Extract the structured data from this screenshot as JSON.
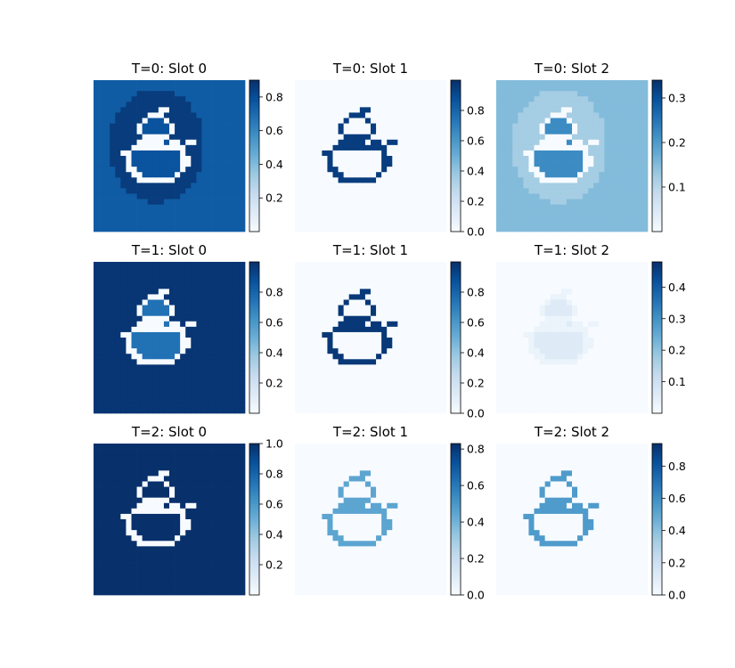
{
  "figure": {
    "colormap": "Blues",
    "colormap_stops": [
      "#f7fbff",
      "#deebf7",
      "#c6dbef",
      "#9ecae1",
      "#6baed6",
      "#4292c6",
      "#2171b5",
      "#08519c",
      "#08306b"
    ]
  },
  "chart_data": [
    {
      "type": "heatmap",
      "title": "T=0: Slot 0",
      "row": 0,
      "col": 0,
      "vmin": 0.0,
      "vmax": 0.9,
      "colorbar_ticks": [
        0.2,
        0.4,
        0.6,
        0.8
      ],
      "colorbar_tick_labels": [
        "0.2",
        "0.4",
        "0.6",
        "0.8"
      ],
      "fill_values": {
        "background": 0.75,
        "halo": 0.86,
        "interior": 0.78,
        "outline": 0.0
      }
    },
    {
      "type": "heatmap",
      "title": "T=0: Slot 1",
      "row": 0,
      "col": 1,
      "vmin": 0.0,
      "vmax": 1.0,
      "colorbar_ticks": [
        0.0,
        0.2,
        0.4,
        0.6,
        0.8
      ],
      "colorbar_tick_labels": [
        "0.0",
        "0.2",
        "0.4",
        "0.6",
        "0.8"
      ],
      "fill_values": {
        "background": 0.0,
        "halo": 0.0,
        "interior": 0.0,
        "outline": 0.95
      }
    },
    {
      "type": "heatmap",
      "title": "T=0: Slot 2",
      "row": 0,
      "col": 2,
      "vmin": 0.0,
      "vmax": 0.34,
      "colorbar_ticks": [
        0.1,
        0.2,
        0.3
      ],
      "colorbar_tick_labels": [
        "0.1",
        "0.2",
        "0.3"
      ],
      "fill_values": {
        "background": 0.15,
        "halo": 0.12,
        "interior": 0.22,
        "outline": 0.0
      }
    },
    {
      "type": "heatmap",
      "title": "T=1: Slot 0",
      "row": 1,
      "col": 0,
      "vmin": 0.0,
      "vmax": 1.0,
      "colorbar_ticks": [
        0.2,
        0.4,
        0.6,
        0.8
      ],
      "colorbar_tick_labels": [
        "0.2",
        "0.4",
        "0.6",
        "0.8"
      ],
      "fill_values": {
        "background": 0.98,
        "halo": 0.98,
        "interior": 0.75,
        "outline": 0.0
      }
    },
    {
      "type": "heatmap",
      "title": "T=1: Slot 1",
      "row": 1,
      "col": 1,
      "vmin": 0.0,
      "vmax": 1.0,
      "colorbar_ticks": [
        0.0,
        0.2,
        0.4,
        0.6,
        0.8
      ],
      "colorbar_tick_labels": [
        "0.0",
        "0.2",
        "0.4",
        "0.6",
        "0.8"
      ],
      "fill_values": {
        "background": 0.0,
        "halo": 0.0,
        "interior": 0.0,
        "outline": 0.97
      }
    },
    {
      "type": "heatmap",
      "title": "T=1: Slot 2",
      "row": 1,
      "col": 2,
      "vmin": 0.0,
      "vmax": 0.48,
      "colorbar_ticks": [
        0.1,
        0.2,
        0.3,
        0.4
      ],
      "colorbar_tick_labels": [
        "0.1",
        "0.2",
        "0.3",
        "0.4"
      ],
      "fill_values": {
        "background": 0.0,
        "halo": 0.0,
        "interior": 0.06,
        "outline": 0.03
      }
    },
    {
      "type": "heatmap",
      "title": "T=2: Slot 0",
      "row": 2,
      "col": 0,
      "vmin": 0.0,
      "vmax": 1.0,
      "colorbar_ticks": [
        0.2,
        0.4,
        0.6,
        0.8,
        1.0
      ],
      "colorbar_tick_labels": [
        "0.2",
        "0.4",
        "0.6",
        "0.8",
        "1.0"
      ],
      "fill_values": {
        "background": 1.0,
        "halo": 1.0,
        "interior": 1.0,
        "outline": 0.0
      }
    },
    {
      "type": "heatmap",
      "title": "T=2: Slot 1",
      "row": 2,
      "col": 1,
      "vmin": 0.0,
      "vmax": 0.83,
      "colorbar_ticks": [
        0.0,
        0.2,
        0.4,
        0.6,
        0.8
      ],
      "colorbar_tick_labels": [
        "0.0",
        "0.2",
        "0.4",
        "0.6",
        "0.8"
      ],
      "fill_values": {
        "background": 0.0,
        "halo": 0.0,
        "interior": 0.0,
        "outline": 0.45
      }
    },
    {
      "type": "heatmap",
      "title": "T=2: Slot 2",
      "row": 2,
      "col": 2,
      "vmin": 0.0,
      "vmax": 0.94,
      "colorbar_ticks": [
        0.0,
        0.2,
        0.4,
        0.6,
        0.8
      ],
      "colorbar_tick_labels": [
        "0.0",
        "0.2",
        "0.4",
        "0.6",
        "0.8"
      ],
      "fill_values": {
        "background": 0.0,
        "halo": 0.0,
        "interior": 0.0,
        "outline": 0.55
      }
    }
  ]
}
